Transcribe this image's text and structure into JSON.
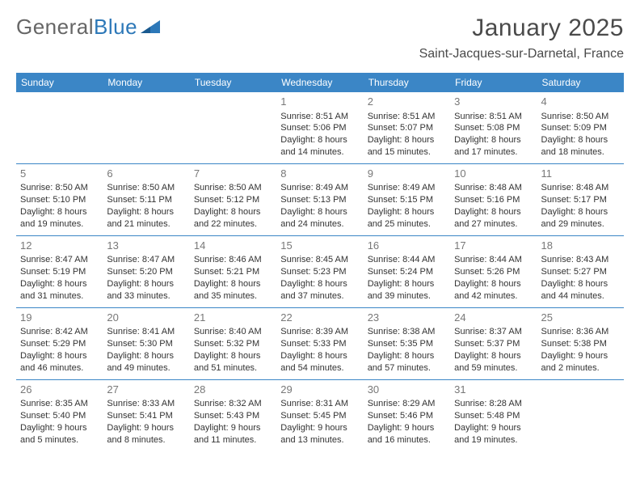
{
  "brand": {
    "name_left": "General",
    "name_right": "Blue"
  },
  "title": "January 2025",
  "location": "Saint-Jacques-sur-Darnetal, France",
  "colors": {
    "header_bg": "#3b86c6",
    "header_fg": "#ffffff",
    "row_border": "#3b86c6",
    "daynum": "#787878",
    "text": "#333333",
    "brand_gray": "#666666",
    "brand_blue": "#2d78b8"
  },
  "daysOfWeek": [
    "Sunday",
    "Monday",
    "Tuesday",
    "Wednesday",
    "Thursday",
    "Friday",
    "Saturday"
  ],
  "weeks": [
    [
      null,
      null,
      null,
      {
        "n": "1",
        "sunrise": "8:51 AM",
        "sunset": "5:06 PM",
        "daylight": "8 hours and 14 minutes."
      },
      {
        "n": "2",
        "sunrise": "8:51 AM",
        "sunset": "5:07 PM",
        "daylight": "8 hours and 15 minutes."
      },
      {
        "n": "3",
        "sunrise": "8:51 AM",
        "sunset": "5:08 PM",
        "daylight": "8 hours and 17 minutes."
      },
      {
        "n": "4",
        "sunrise": "8:50 AM",
        "sunset": "5:09 PM",
        "daylight": "8 hours and 18 minutes."
      }
    ],
    [
      {
        "n": "5",
        "sunrise": "8:50 AM",
        "sunset": "5:10 PM",
        "daylight": "8 hours and 19 minutes."
      },
      {
        "n": "6",
        "sunrise": "8:50 AM",
        "sunset": "5:11 PM",
        "daylight": "8 hours and 21 minutes."
      },
      {
        "n": "7",
        "sunrise": "8:50 AM",
        "sunset": "5:12 PM",
        "daylight": "8 hours and 22 minutes."
      },
      {
        "n": "8",
        "sunrise": "8:49 AM",
        "sunset": "5:13 PM",
        "daylight": "8 hours and 24 minutes."
      },
      {
        "n": "9",
        "sunrise": "8:49 AM",
        "sunset": "5:15 PM",
        "daylight": "8 hours and 25 minutes."
      },
      {
        "n": "10",
        "sunrise": "8:48 AM",
        "sunset": "5:16 PM",
        "daylight": "8 hours and 27 minutes."
      },
      {
        "n": "11",
        "sunrise": "8:48 AM",
        "sunset": "5:17 PM",
        "daylight": "8 hours and 29 minutes."
      }
    ],
    [
      {
        "n": "12",
        "sunrise": "8:47 AM",
        "sunset": "5:19 PM",
        "daylight": "8 hours and 31 minutes."
      },
      {
        "n": "13",
        "sunrise": "8:47 AM",
        "sunset": "5:20 PM",
        "daylight": "8 hours and 33 minutes."
      },
      {
        "n": "14",
        "sunrise": "8:46 AM",
        "sunset": "5:21 PM",
        "daylight": "8 hours and 35 minutes."
      },
      {
        "n": "15",
        "sunrise": "8:45 AM",
        "sunset": "5:23 PM",
        "daylight": "8 hours and 37 minutes."
      },
      {
        "n": "16",
        "sunrise": "8:44 AM",
        "sunset": "5:24 PM",
        "daylight": "8 hours and 39 minutes."
      },
      {
        "n": "17",
        "sunrise": "8:44 AM",
        "sunset": "5:26 PM",
        "daylight": "8 hours and 42 minutes."
      },
      {
        "n": "18",
        "sunrise": "8:43 AM",
        "sunset": "5:27 PM",
        "daylight": "8 hours and 44 minutes."
      }
    ],
    [
      {
        "n": "19",
        "sunrise": "8:42 AM",
        "sunset": "5:29 PM",
        "daylight": "8 hours and 46 minutes."
      },
      {
        "n": "20",
        "sunrise": "8:41 AM",
        "sunset": "5:30 PM",
        "daylight": "8 hours and 49 minutes."
      },
      {
        "n": "21",
        "sunrise": "8:40 AM",
        "sunset": "5:32 PM",
        "daylight": "8 hours and 51 minutes."
      },
      {
        "n": "22",
        "sunrise": "8:39 AM",
        "sunset": "5:33 PM",
        "daylight": "8 hours and 54 minutes."
      },
      {
        "n": "23",
        "sunrise": "8:38 AM",
        "sunset": "5:35 PM",
        "daylight": "8 hours and 57 minutes."
      },
      {
        "n": "24",
        "sunrise": "8:37 AM",
        "sunset": "5:37 PM",
        "daylight": "8 hours and 59 minutes."
      },
      {
        "n": "25",
        "sunrise": "8:36 AM",
        "sunset": "5:38 PM",
        "daylight": "9 hours and 2 minutes."
      }
    ],
    [
      {
        "n": "26",
        "sunrise": "8:35 AM",
        "sunset": "5:40 PM",
        "daylight": "9 hours and 5 minutes."
      },
      {
        "n": "27",
        "sunrise": "8:33 AM",
        "sunset": "5:41 PM",
        "daylight": "9 hours and 8 minutes."
      },
      {
        "n": "28",
        "sunrise": "8:32 AM",
        "sunset": "5:43 PM",
        "daylight": "9 hours and 11 minutes."
      },
      {
        "n": "29",
        "sunrise": "8:31 AM",
        "sunset": "5:45 PM",
        "daylight": "9 hours and 13 minutes."
      },
      {
        "n": "30",
        "sunrise": "8:29 AM",
        "sunset": "5:46 PM",
        "daylight": "9 hours and 16 minutes."
      },
      {
        "n": "31",
        "sunrise": "8:28 AM",
        "sunset": "5:48 PM",
        "daylight": "9 hours and 19 minutes."
      },
      null
    ]
  ],
  "labels": {
    "sunrise": "Sunrise:",
    "sunset": "Sunset:",
    "daylight": "Daylight:"
  }
}
